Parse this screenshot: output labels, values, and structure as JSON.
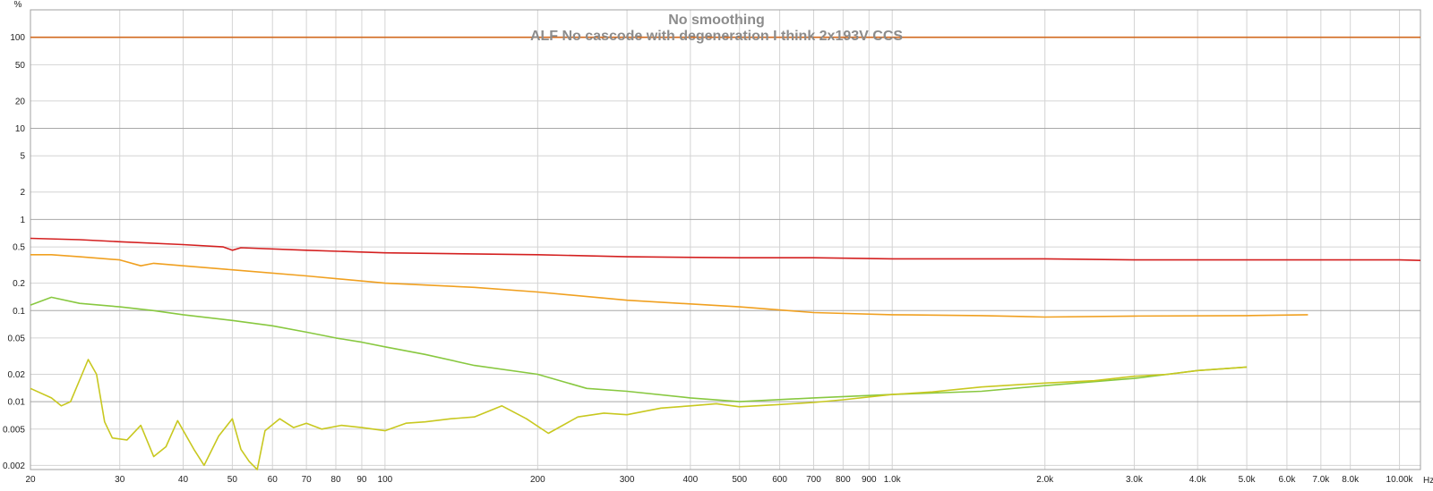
{
  "chart_data": {
    "type": "line",
    "title": "No smoothing",
    "subtitle": "ALF No cascode with degeneration I think 2x193V CCS",
    "x_unit": "Hz",
    "y_unit": "%",
    "x_scale": "log",
    "y_scale": "log",
    "xlim": [
      20,
      11000
    ],
    "ylim": [
      0.0018,
      200
    ],
    "grid": true,
    "x_ticks": [
      {
        "value": 20,
        "label": "20"
      },
      {
        "value": 30,
        "label": "30"
      },
      {
        "value": 40,
        "label": "40"
      },
      {
        "value": 50,
        "label": "50"
      },
      {
        "value": 60,
        "label": "60"
      },
      {
        "value": 70,
        "label": "70"
      },
      {
        "value": 80,
        "label": "80"
      },
      {
        "value": 90,
        "label": "90"
      },
      {
        "value": 100,
        "label": "100"
      },
      {
        "value": 200,
        "label": "200"
      },
      {
        "value": 300,
        "label": "300"
      },
      {
        "value": 400,
        "label": "400"
      },
      {
        "value": 500,
        "label": "500"
      },
      {
        "value": 600,
        "label": "600"
      },
      {
        "value": 700,
        "label": "700"
      },
      {
        "value": 800,
        "label": "800"
      },
      {
        "value": 900,
        "label": "900"
      },
      {
        "value": 1000,
        "label": "1.0k"
      },
      {
        "value": 2000,
        "label": "2.0k"
      },
      {
        "value": 3000,
        "label": "3.0k"
      },
      {
        "value": 4000,
        "label": "4.0k"
      },
      {
        "value": 5000,
        "label": "5.0k"
      },
      {
        "value": 6000,
        "label": "6.0k"
      },
      {
        "value": 7000,
        "label": "7.0k"
      },
      {
        "value": 8000,
        "label": "8.0k"
      },
      {
        "value": 10000,
        "label": "10.00k"
      }
    ],
    "y_ticks": [
      {
        "value": 100,
        "label": "100"
      },
      {
        "value": 50,
        "label": "50"
      },
      {
        "value": 20,
        "label": "20"
      },
      {
        "value": 10,
        "label": "10"
      },
      {
        "value": 5,
        "label": "5"
      },
      {
        "value": 2,
        "label": "2"
      },
      {
        "value": 1,
        "label": "1"
      },
      {
        "value": 0.5,
        "label": "0.5"
      },
      {
        "value": 0.2,
        "label": "0.2"
      },
      {
        "value": 0.1,
        "label": "0.1"
      },
      {
        "value": 0.05,
        "label": "0.05"
      },
      {
        "value": 0.02,
        "label": "0.02"
      },
      {
        "value": 0.01,
        "label": "0.01"
      },
      {
        "value": 0.005,
        "label": "0.005"
      },
      {
        "value": 0.002,
        "label": "0.002"
      }
    ],
    "series": [
      {
        "color": "#d2691e",
        "x": [
          20,
          11000
        ],
        "y": [
          100,
          100
        ]
      },
      {
        "color": "#d42020",
        "x": [
          20,
          25,
          30,
          40,
          48,
          50,
          52,
          70,
          100,
          200,
          300,
          500,
          700,
          1000,
          2000,
          3000,
          5000,
          7000,
          10000,
          11000
        ],
        "y": [
          0.62,
          0.6,
          0.57,
          0.53,
          0.5,
          0.46,
          0.49,
          0.46,
          0.43,
          0.41,
          0.39,
          0.38,
          0.38,
          0.37,
          0.37,
          0.36,
          0.36,
          0.36,
          0.36,
          0.355
        ]
      },
      {
        "color": "#f0a020",
        "x": [
          20,
          22,
          25,
          30,
          33,
          35,
          40,
          50,
          70,
          100,
          150,
          200,
          300,
          500,
          700,
          1000,
          1500,
          2000,
          3000,
          5000,
          6600
        ],
        "y": [
          0.41,
          0.41,
          0.39,
          0.36,
          0.31,
          0.33,
          0.31,
          0.28,
          0.24,
          0.2,
          0.18,
          0.16,
          0.13,
          0.11,
          0.095,
          0.09,
          0.088,
          0.085,
          0.087,
          0.088,
          0.09
        ]
      },
      {
        "color": "#88c840",
        "x": [
          20,
          22,
          25,
          30,
          35,
          40,
          50,
          60,
          70,
          80,
          90,
          100,
          120,
          150,
          200,
          250,
          300,
          400,
          500,
          700,
          1000,
          1500,
          2000,
          3000,
          4000,
          5000
        ],
        "y": [
          0.115,
          0.14,
          0.12,
          0.11,
          0.1,
          0.09,
          0.078,
          0.068,
          0.058,
          0.05,
          0.045,
          0.04,
          0.033,
          0.025,
          0.02,
          0.014,
          0.013,
          0.011,
          0.01,
          0.011,
          0.012,
          0.013,
          0.015,
          0.018,
          0.022,
          0.024
        ]
      },
      {
        "color": "#c8c820",
        "x": [
          20,
          22,
          23,
          24,
          26,
          27,
          28,
          29,
          31,
          33,
          35,
          37,
          39,
          42,
          44,
          47,
          50,
          52,
          54,
          56,
          58,
          62,
          66,
          70,
          75,
          82,
          90,
          100,
          110,
          120,
          135,
          150,
          170,
          190,
          210,
          240,
          270,
          300,
          350,
          400,
          450,
          500,
          600,
          700,
          800,
          1000,
          1200,
          1500,
          2000,
          2500,
          3000,
          3500,
          4000,
          4500,
          5000
        ],
        "y": [
          0.014,
          0.011,
          0.009,
          0.01,
          0.029,
          0.02,
          0.006,
          0.004,
          0.0038,
          0.0055,
          0.0025,
          0.0032,
          0.0062,
          0.003,
          0.002,
          0.0042,
          0.0065,
          0.003,
          0.0022,
          0.0015,
          0.0048,
          0.0065,
          0.0052,
          0.0058,
          0.005,
          0.0055,
          0.0052,
          0.0048,
          0.0058,
          0.006,
          0.0065,
          0.0068,
          0.009,
          0.0065,
          0.0045,
          0.0068,
          0.0075,
          0.0072,
          0.0085,
          0.009,
          0.0095,
          0.0088,
          0.0093,
          0.0098,
          0.0105,
          0.012,
          0.0128,
          0.0145,
          0.016,
          0.017,
          0.019,
          0.02,
          0.022,
          0.023,
          0.024
        ]
      }
    ]
  }
}
